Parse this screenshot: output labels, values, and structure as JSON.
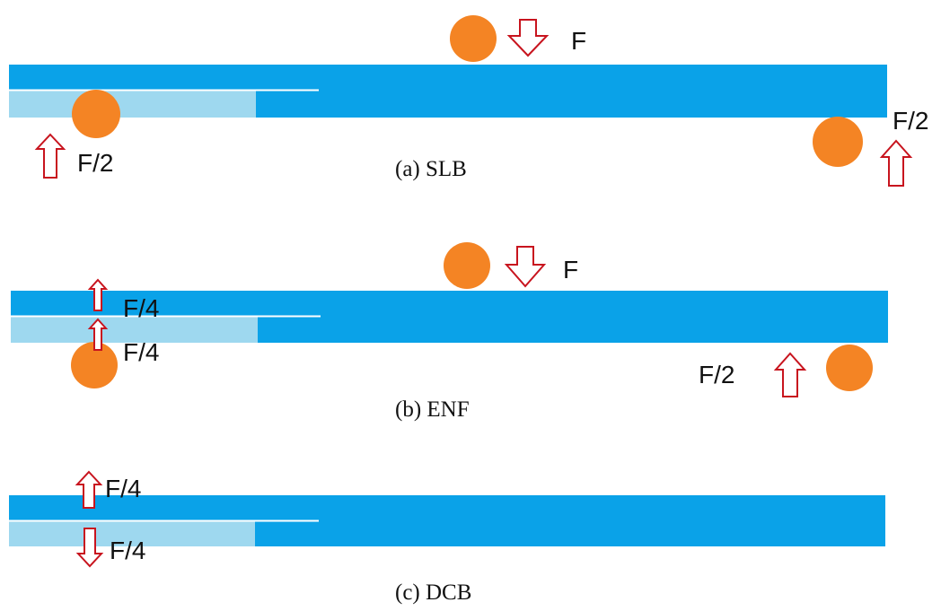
{
  "colors": {
    "beam": "#0aa2e8",
    "cracked": "#9ed8ef",
    "roller": "#f48424",
    "arrow": "#c8141e",
    "crack_line": "#ffffff"
  },
  "icons": [
    "roller-icon",
    "arrow-up-icon",
    "arrow-down-icon"
  ],
  "panels": {
    "slb": {
      "caption": "(a) SLB",
      "load_top": "F",
      "reaction_left": "F/2",
      "reaction_right": "F/2"
    },
    "enf": {
      "caption": "(b) ENF",
      "load_top": "F",
      "crack_upper": "F/4",
      "crack_lower": "F/4",
      "reaction_right": "F/2"
    },
    "dcb": {
      "caption": "(c) DCB",
      "pull_up": "F/4",
      "pull_down": "F/4"
    }
  }
}
